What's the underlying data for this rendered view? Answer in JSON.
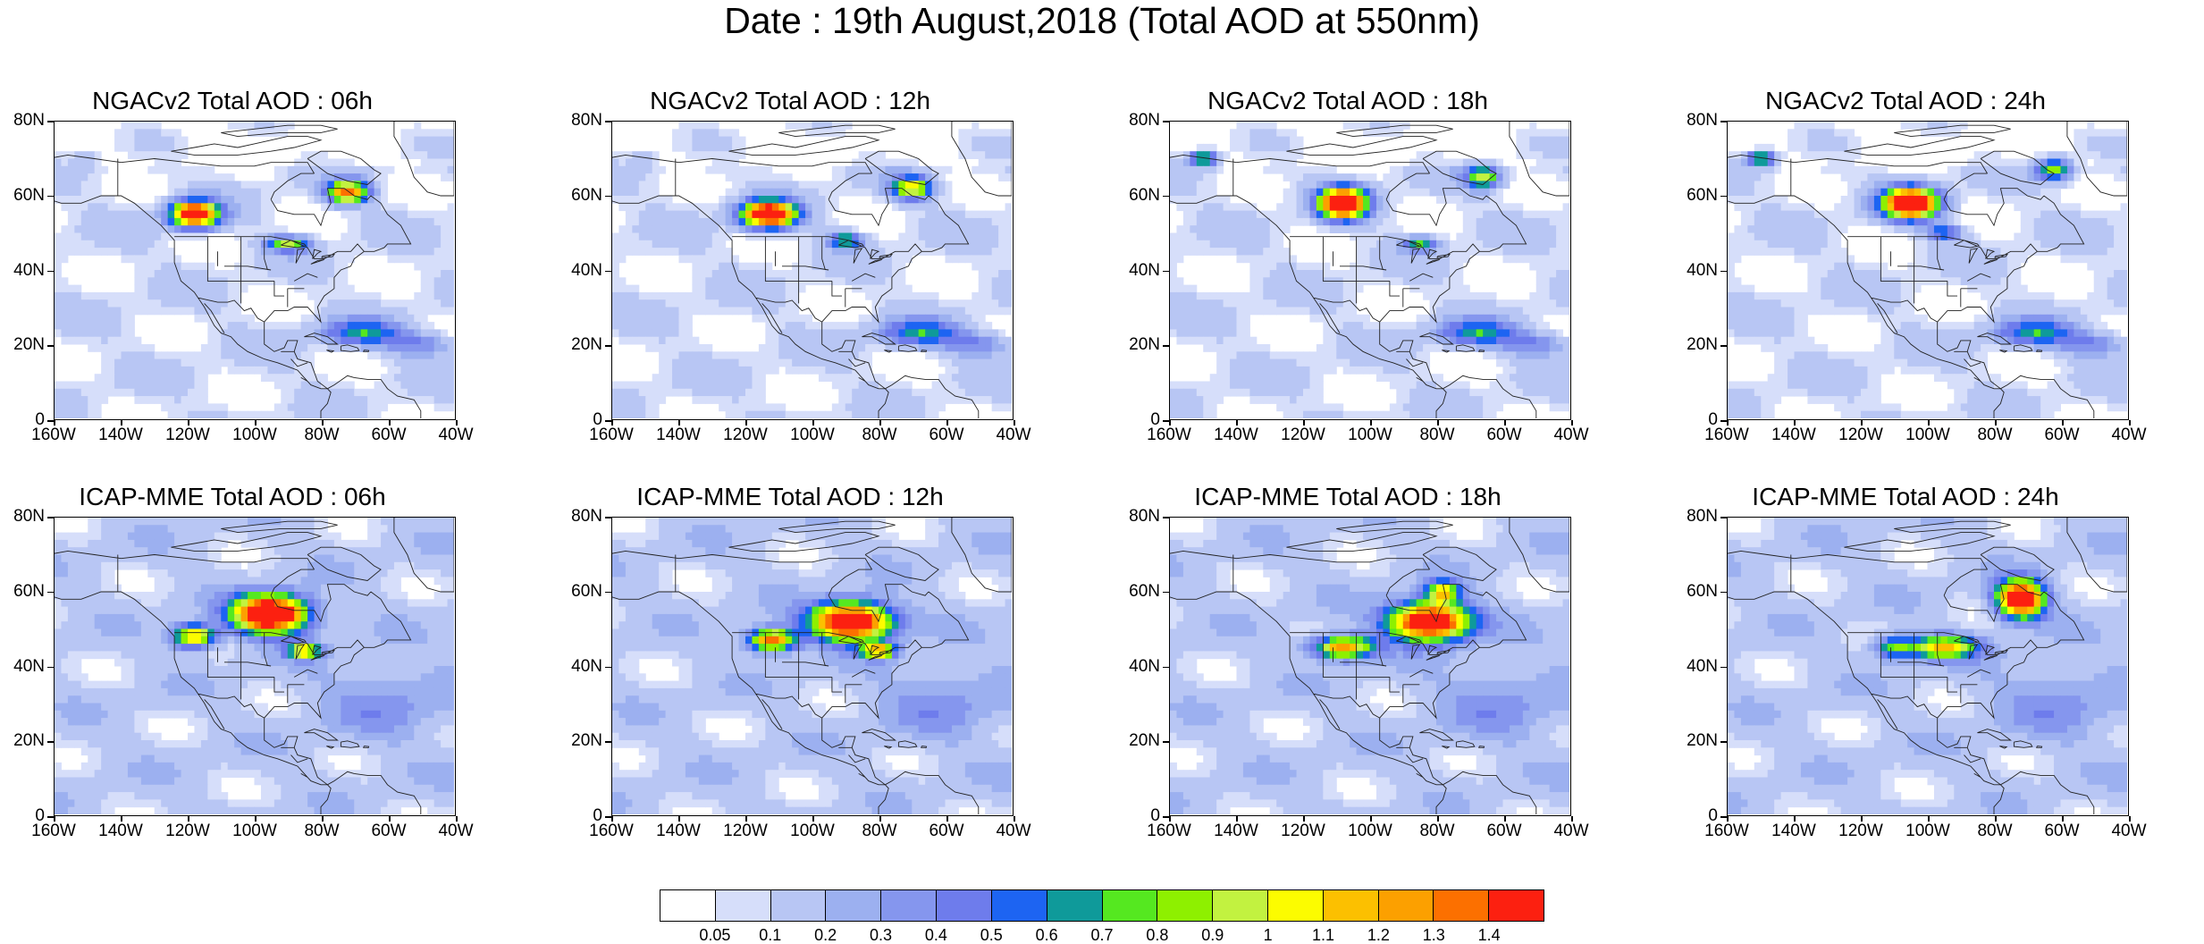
{
  "title": "Date : 19th August,2018 (Total AOD at 550nm)",
  "panels": [
    {
      "title": "NGACv2 Total AOD : 06h",
      "row": 0,
      "col": 0,
      "model": "ngac",
      "hour": 6
    },
    {
      "title": "NGACv2 Total AOD : 12h",
      "row": 0,
      "col": 1,
      "model": "ngac",
      "hour": 12
    },
    {
      "title": "NGACv2 Total AOD : 18h",
      "row": 0,
      "col": 2,
      "model": "ngac",
      "hour": 18
    },
    {
      "title": "NGACv2 Total AOD : 24h",
      "row": 0,
      "col": 3,
      "model": "ngac",
      "hour": 24
    },
    {
      "title": "ICAP-MME Total AOD : 06h",
      "row": 1,
      "col": 0,
      "model": "icap",
      "hour": 6
    },
    {
      "title": "ICAP-MME Total AOD : 12h",
      "row": 1,
      "col": 1,
      "model": "icap",
      "hour": 12
    },
    {
      "title": "ICAP-MME Total AOD : 18h",
      "row": 1,
      "col": 2,
      "model": "icap",
      "hour": 18
    },
    {
      "title": "ICAP-MME Total AOD : 24h",
      "row": 1,
      "col": 3,
      "model": "icap",
      "hour": 24
    }
  ],
  "lat_ticks": [
    "80N",
    "60N",
    "40N",
    "20N",
    "0"
  ],
  "lon_ticks": [
    "160W",
    "140W",
    "120W",
    "100W",
    "80W",
    "60W",
    "40W"
  ],
  "lat_range": [
    0,
    80
  ],
  "lon_range": [
    -160,
    -40
  ],
  "colorbar": {
    "labels": [
      "0.05",
      "0.1",
      "0.2",
      "0.3",
      "0.4",
      "0.5",
      "0.6",
      "0.7",
      "0.8",
      "0.9",
      "1",
      "1.1",
      "1.2",
      "1.3",
      "1.4"
    ],
    "colors": [
      "#ffffff",
      "#d6defa",
      "#b8c6f4",
      "#9cb0f0",
      "#8596ee",
      "#6e7cec",
      "#1d64f2",
      "#0f9a9a",
      "#55e820",
      "#8ef000",
      "#c2f240",
      "#fcfc00",
      "#fcc000",
      "#fca000",
      "#fc7000",
      "#fc2010"
    ]
  }
}
